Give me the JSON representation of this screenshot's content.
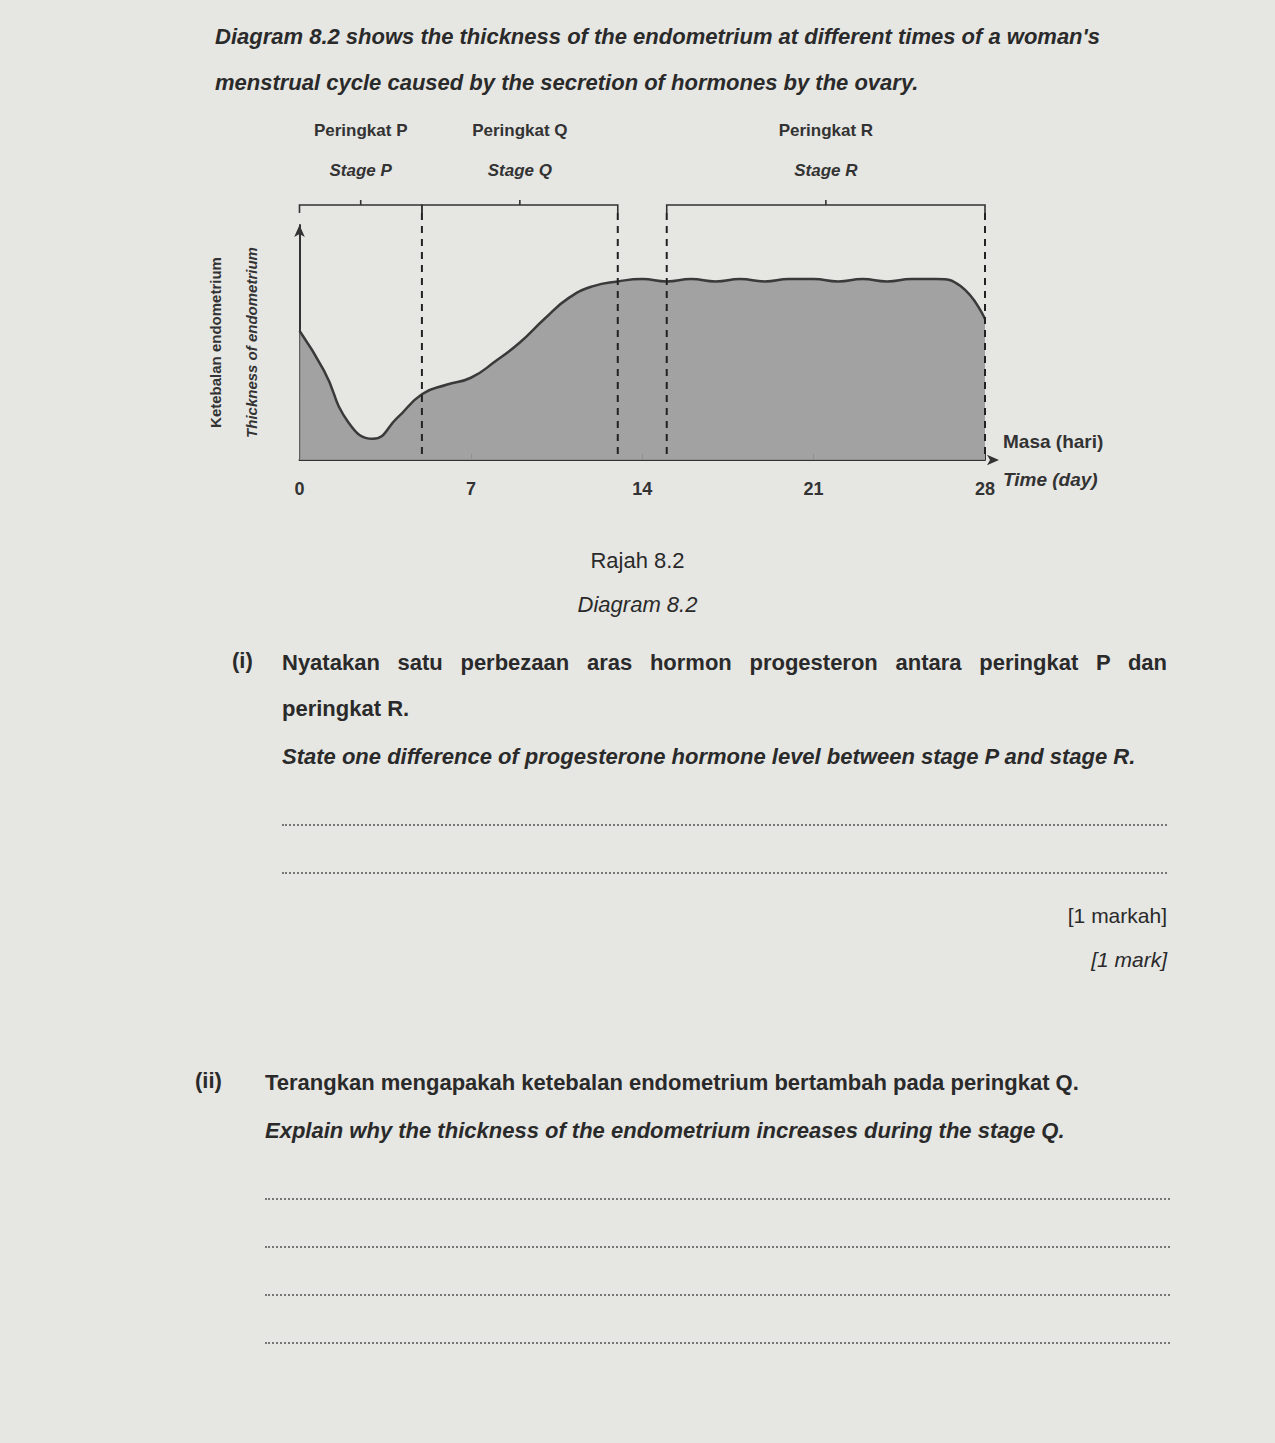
{
  "intro": "Diagram 8.2 shows the thickness of the endometrium at different times of a woman's menstrual cycle caused by the secretion of hormones by the ovary.",
  "chart_data": {
    "type": "line",
    "x": [
      0,
      1,
      2,
      3,
      4,
      5,
      6,
      7,
      8,
      9,
      10,
      11,
      12,
      13,
      14,
      15,
      16,
      17,
      18,
      19,
      20,
      21,
      22,
      23,
      24,
      25,
      26,
      27,
      28
    ],
    "values": [
      5.5,
      3.8,
      1.6,
      0.9,
      1.8,
      2.8,
      3.2,
      3.5,
      4.2,
      5.0,
      6.0,
      6.9,
      7.4,
      7.6,
      7.7,
      7.6,
      7.7,
      7.6,
      7.7,
      7.6,
      7.7,
      7.7,
      7.6,
      7.7,
      7.6,
      7.7,
      7.7,
      7.4,
      6.0
    ],
    "color": "#9a9a9a",
    "xlabel": [
      "Masa (hari)",
      "Time (day)"
    ],
    "ylabel": [
      "Ketebalan endometrium",
      "Thickness of endometrium"
    ],
    "xlim": [
      0,
      28
    ],
    "xticks": [
      0,
      7,
      14,
      21,
      28
    ],
    "ylim": [
      0,
      10
    ],
    "grid": false,
    "tick_labels": "x",
    "stages": [
      {
        "label": "Peringkat P",
        "label_en": "Stage P",
        "start": 0,
        "end": 5
      },
      {
        "label": "Peringkat Q",
        "label_en": "Stage Q",
        "start": 5,
        "end": 13
      },
      {
        "label": "Peringkat R",
        "label_en": "Stage R",
        "start": 15,
        "end": 28
      }
    ]
  },
  "caption": [
    "Rajah 8.2",
    "Diagram 8.2"
  ],
  "questions": [
    {
      "number": "(i)",
      "text": "Nyatakan satu perbezaan aras hormon progesteron antara peringkat P dan peringkat R.",
      "text_en": "State one difference of progesterone hormone level between stage P and stage R.",
      "marks": "[1 markah]",
      "marks_en": "[1 mark]",
      "answer_lines": 2
    },
    {
      "number": "(ii)",
      "text": "Terangkan mengapakah ketebalan endometrium bertambah pada peringkat Q.",
      "text_en": "Explain why the thickness of the endometrium increases during the stage Q.",
      "answer_lines": 4
    }
  ]
}
